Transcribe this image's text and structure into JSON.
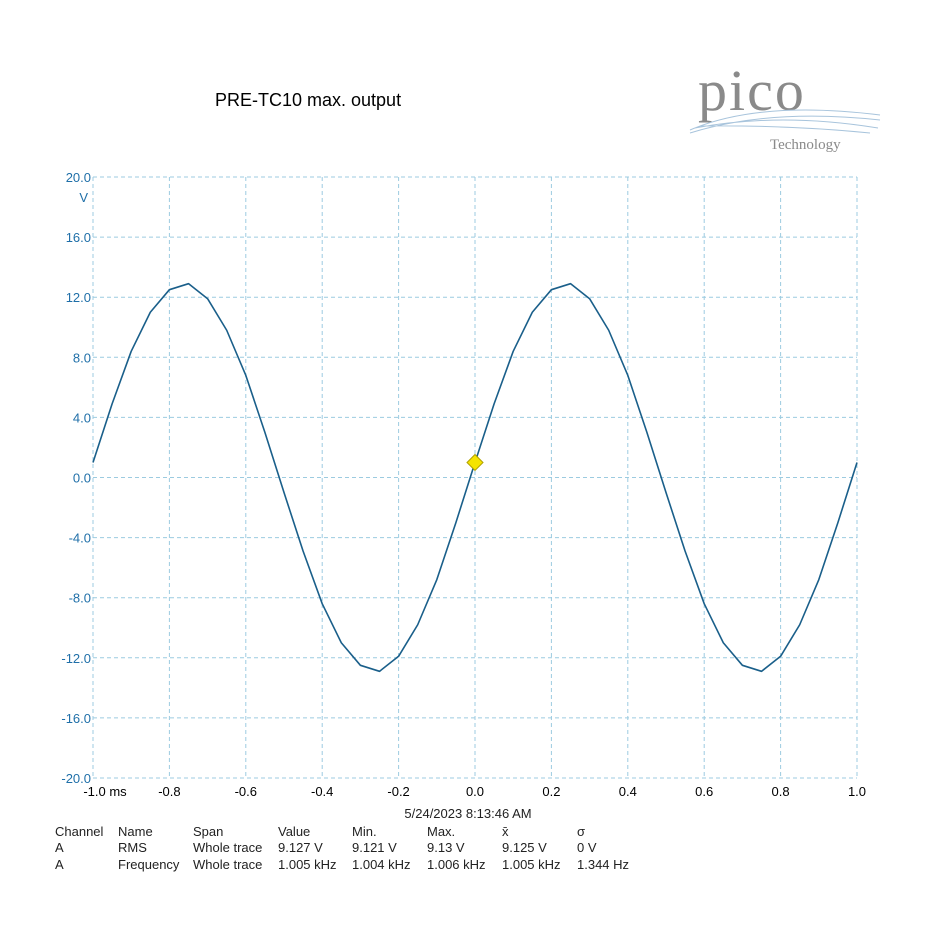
{
  "chart_data": {
    "type": "line",
    "title": "PRE-TC10 max. output",
    "logo": {
      "name": "pico",
      "subtitle": "Technology"
    },
    "y_unit": "V",
    "timestamp": "5/24/2023 8:13:46 AM",
    "x": [
      -1.0,
      -0.95,
      -0.9,
      -0.85,
      -0.8,
      -0.75,
      -0.7,
      -0.65,
      -0.6,
      -0.55,
      -0.5,
      -0.45,
      -0.4,
      -0.35,
      -0.3,
      -0.25,
      -0.2,
      -0.15,
      -0.1,
      -0.05,
      0.0,
      0.05,
      0.1,
      0.15,
      0.2,
      0.25,
      0.3,
      0.35,
      0.4,
      0.45,
      0.5,
      0.55,
      0.6,
      0.65,
      0.7,
      0.75,
      0.8,
      0.85,
      0.9,
      0.95,
      1.0
    ],
    "values": [
      1.0,
      4.9,
      8.4,
      11.0,
      12.5,
      12.9,
      11.9,
      9.8,
      6.8,
      3.0,
      -1.0,
      -4.9,
      -8.4,
      -11.0,
      -12.5,
      -12.9,
      -11.9,
      -9.8,
      -6.8,
      -3.0,
      1.0,
      4.9,
      8.4,
      11.0,
      12.5,
      12.9,
      11.9,
      9.8,
      6.8,
      3.0,
      -1.0,
      -4.9,
      -8.4,
      -11.0,
      -12.5,
      -12.9,
      -11.9,
      -9.8,
      -6.8,
      -3.0,
      1.0
    ],
    "color": "#1a5f8a",
    "trigger": {
      "x": 0,
      "y": 1.0,
      "color": "#f5e400"
    },
    "xlim": [
      -1.0,
      1.0
    ],
    "ylim": [
      -20,
      20
    ],
    "xticks": [
      {
        "value": -1.0,
        "label": "-1.0 ms"
      },
      -0.8,
      -0.6,
      -0.4,
      -0.2,
      {
        "value": 0,
        "label": "0.0"
      },
      0.2,
      0.4,
      0.6,
      0.8,
      {
        "value": 1,
        "label": "1.0"
      }
    ],
    "yticks": [
      {
        "value": 20,
        "label": "20.0"
      },
      {
        "value": 16,
        "label": "16.0"
      },
      {
        "value": 12,
        "label": "12.0"
      },
      {
        "value": 8,
        "label": "8.0"
      },
      {
        "value": 4,
        "label": "4.0"
      },
      {
        "value": 0,
        "label": "0.0"
      },
      {
        "value": -4,
        "label": "-4.0"
      },
      {
        "value": -8,
        "label": "-8.0"
      },
      {
        "value": -12,
        "label": "-12.0"
      },
      {
        "value": -16,
        "label": "-16.0"
      },
      {
        "value": -20,
        "label": "-20.0"
      }
    ],
    "grid": true,
    "measurements": {
      "header": [
        "Channel",
        "Name",
        "Span",
        "Value",
        "Min.",
        "Max.",
        "x̄",
        "σ"
      ],
      "rows": [
        [
          "A",
          "RMS",
          "Whole trace",
          "9.127 V",
          "9.121 V",
          "9.13 V",
          "9.125 V",
          "0 V"
        ],
        [
          "A",
          "Frequency",
          "Whole trace",
          "1.005 kHz",
          "1.004 kHz",
          "1.006 kHz",
          "1.005 kHz",
          "1.344 Hz"
        ]
      ]
    }
  }
}
